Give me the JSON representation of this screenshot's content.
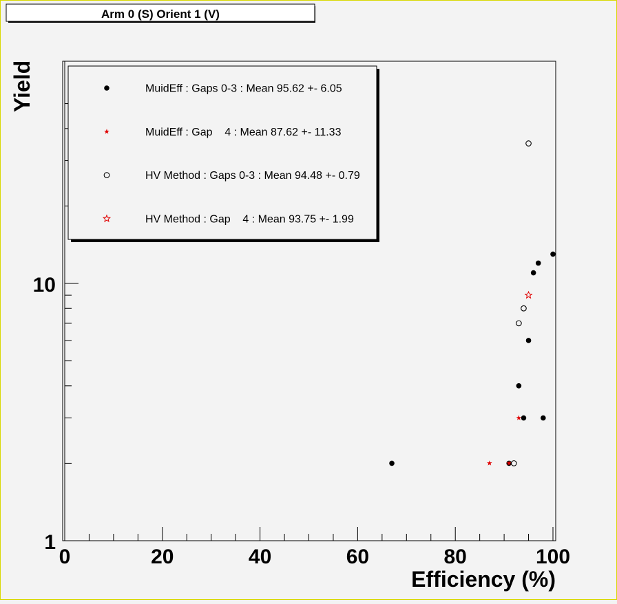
{
  "chart_data": {
    "type": "scatter",
    "title": "Arm 0 (S) Orient 1 (V)",
    "xlabel": "Efficiency (%)",
    "ylabel": "Yield",
    "xlim": [
      0,
      100
    ],
    "ylim": [
      1,
      50
    ],
    "yscale": "log",
    "grid": false,
    "legend_position": "top-left",
    "x_ticks": [
      "0",
      "20",
      "40",
      "60",
      "80",
      "100"
    ],
    "y_ticks": [
      "1",
      "10"
    ],
    "series": [
      {
        "name": "MuidEff : Gaps 0-3 : Mean 95.62 +- 6.05",
        "marker": "filled-circle",
        "color": "#000000",
        "x": [
          67,
          91,
          93,
          94,
          95,
          96,
          97,
          98,
          100
        ],
        "y": [
          2,
          2,
          4,
          3,
          6,
          11,
          12,
          3,
          13
        ]
      },
      {
        "name": "MuidEff : Gap    4 : Mean 87.62 +- 11.33",
        "marker": "filled-star",
        "color": "#e00000",
        "x": [
          87,
          91,
          93
        ],
        "y": [
          2,
          2,
          3
        ]
      },
      {
        "name": "HV Method : Gaps 0-3 : Mean 94.48 +- 0.79",
        "marker": "open-circle",
        "color": "#000000",
        "x": [
          92,
          93,
          94,
          95
        ],
        "y": [
          2,
          7,
          8,
          35
        ]
      },
      {
        "name": "HV Method : Gap    4 : Mean 93.75 +- 1.99",
        "marker": "open-star",
        "color": "#e00000",
        "x": [
          95
        ],
        "y": [
          9
        ]
      }
    ]
  }
}
